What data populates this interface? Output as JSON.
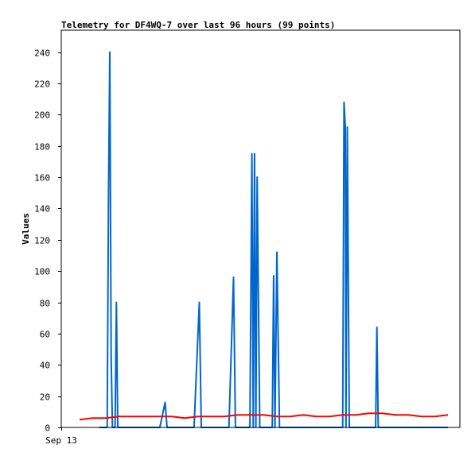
{
  "chart_data": {
    "type": "line",
    "title": "Telemetry for DF4WQ-7 over last 96 hours (99 points)",
    "xlabel": "",
    "ylabel": "Values",
    "x_tick_labels": [
      "Sep 13"
    ],
    "ylim": [
      0,
      254
    ],
    "y_ticks": [
      0,
      20,
      40,
      60,
      80,
      100,
      120,
      140,
      160,
      180,
      200,
      220,
      240
    ],
    "xlim": [
      0,
      96
    ],
    "grid": false,
    "legend": "none",
    "series": [
      {
        "color": "#0066cc",
        "x": [
          3.0,
          4.2,
          4.4,
          4.6,
          4.8,
          5.0,
          5.2,
          5.4,
          5.6,
          5.8,
          6.4,
          7.1,
          7.4,
          8.2,
          12.2,
          13.0,
          13.3,
          13.7,
          14.0,
          14.5,
          17.4,
          18.2,
          18.5,
          18.8,
          19.2,
          21.8,
          22.7,
          23.4,
          23.7,
          24.1,
          24.5,
          25.1,
          25.9,
          26.2,
          26.4,
          26.6,
          26.8,
          27.0,
          27.4,
          29.1,
          29.3,
          29.5,
          29.7,
          30.0,
          30.4,
          30.7,
          30.9,
          33.2,
          38.4,
          38.5,
          38.7,
          38.9,
          39.2,
          39.4,
          39.6,
          39.8,
          40.0,
          40.2,
          40.4,
          40.5,
          40.7,
          41.0,
          41.3,
          41.6,
          41.9,
          44.5,
          44.7,
          44.8,
          45.0,
          45.2,
          45.4,
          45.6,
          45.8,
          46.1,
          46.4,
          46.6,
          46.8,
          47.1,
          47.4,
          47.8,
          48.4,
          49.1,
          49.4,
          49.6,
          50.0,
          50.4,
          50.8,
          51.2,
          51.4,
          51.6,
          52.0,
          52.4,
          52.6,
          52.9,
          53.3,
          53.6,
          54.0,
          55.0,
          56.0
        ],
        "y": [
          0,
          0,
          150,
          240,
          45,
          0,
          0,
          0,
          80,
          0,
          0,
          0,
          0,
          0,
          0,
          16,
          0,
          0,
          0,
          0,
          0,
          80,
          0,
          0,
          0,
          0,
          0,
          96,
          0,
          0,
          0,
          0,
          0,
          175,
          0,
          175,
          0,
          160,
          0,
          0,
          0,
          97,
          0,
          112,
          0,
          0,
          0,
          0,
          0,
          0,
          0,
          0,
          0,
          0,
          0,
          0,
          0,
          208,
          192,
          0,
          192,
          0,
          0,
          0,
          0,
          0,
          0,
          0,
          0,
          64,
          0,
          0,
          0,
          0,
          0,
          0,
          0,
          0,
          0,
          0,
          0,
          0,
          0,
          0,
          0,
          0,
          0,
          0,
          0,
          0,
          0,
          0,
          0,
          0,
          0,
          0,
          0,
          0,
          0
        ]
      },
      {
        "color": "#ff0000",
        "x": [
          0,
          2,
          4,
          6,
          8,
          10,
          12,
          14,
          16,
          18,
          20,
          22,
          24,
          26,
          28,
          30,
          32,
          34,
          36,
          38,
          40,
          42,
          44,
          46,
          48,
          50,
          52,
          54,
          56
        ],
        "y": [
          5,
          6,
          6,
          7,
          7,
          7,
          7,
          7,
          6,
          7,
          7,
          7,
          8,
          8,
          8,
          7,
          7,
          8,
          7,
          7,
          8,
          8,
          9,
          9,
          8,
          8,
          7,
          7,
          8
        ]
      },
      {
        "color": "#000000",
        "x": [
          0,
          56
        ],
        "y": [
          0,
          0
        ]
      }
    ]
  }
}
